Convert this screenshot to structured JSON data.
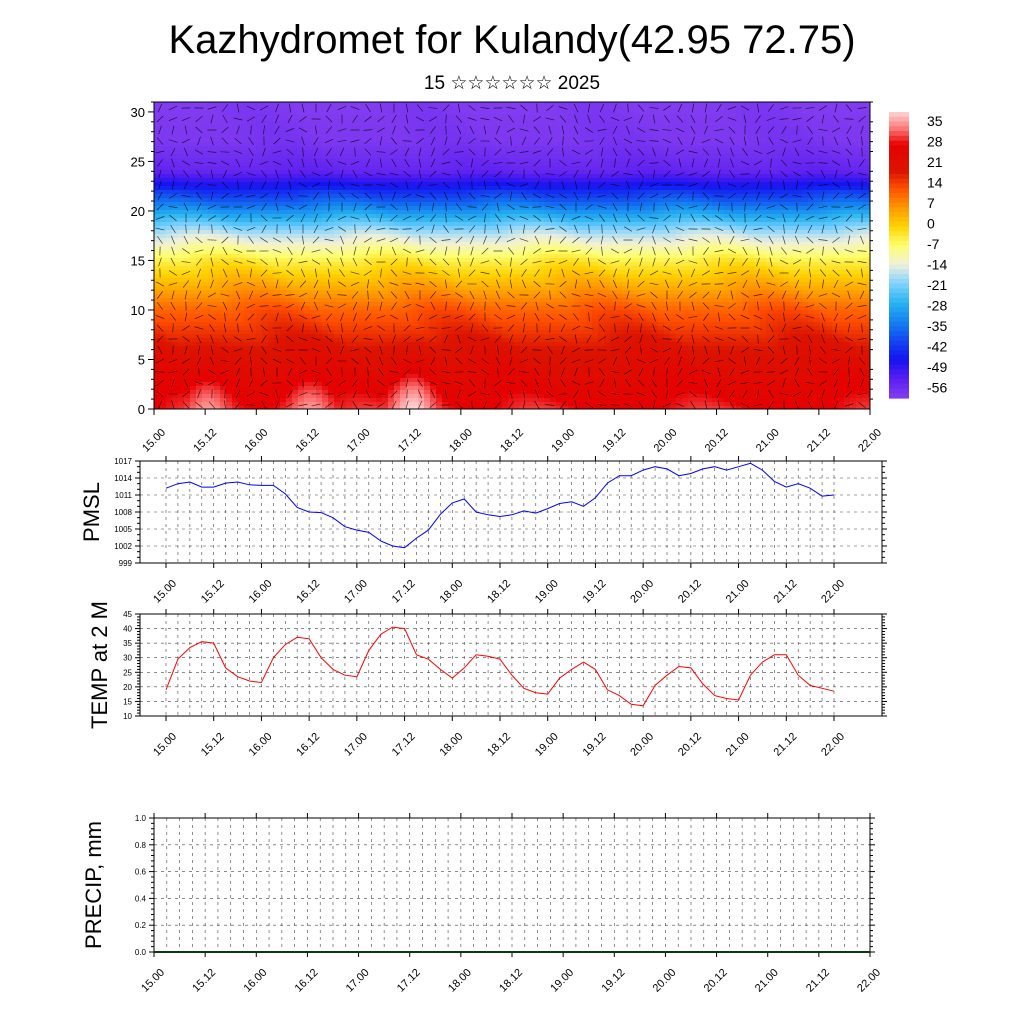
{
  "header": {
    "title": "Kazhydromet for Kulandy(42.95 72.75)",
    "subtitle": "15 ☆☆☆☆☆☆ 2025"
  },
  "chart_data": [
    {
      "type": "heatmap",
      "title": "",
      "xlabel": "",
      "ylabel": "",
      "x_tick_labels": [
        "15.00",
        "15.12",
        "16.00",
        "16.12",
        "17.00",
        "17.12",
        "18.00",
        "18.12",
        "19.00",
        "19.12",
        "20.00",
        "20.12",
        "21.00",
        "21.12",
        "22.00"
      ],
      "y_ticks": [
        0,
        5,
        10,
        15,
        20,
        25,
        30
      ],
      "ylim": [
        0,
        31
      ],
      "colorbar_labels": [
        "35",
        "28",
        "21",
        "14",
        "7",
        "0",
        "-7",
        "-14",
        "-21",
        "-28",
        "-35",
        "-42",
        "-49",
        "-56"
      ],
      "colorbar_range": [
        -63,
        42
      ],
      "overlay": "wind vectors",
      "temperature_profile": {
        "height": [
          0,
          5,
          10,
          15,
          18,
          21,
          24,
          27,
          31
        ],
        "value": [
          30,
          22,
          12,
          -5,
          -20,
          -40,
          -58,
          -62,
          -63
        ]
      },
      "warm_cores": [
        {
          "time": "15.12",
          "value": 38
        },
        {
          "time": "16.12",
          "value": 38
        },
        {
          "time": "17.12",
          "value": 42
        }
      ],
      "colors": {
        "hot": "#ffd0d0",
        "warm": "#dd0000",
        "neutral": "#ffff70",
        "cold": "#1a1aff",
        "coldest": "#7e2df0"
      }
    },
    {
      "type": "line",
      "ylabel": "PMSL",
      "yticks": [
        999,
        1002,
        1005,
        1008,
        1011,
        1014,
        1017
      ],
      "ylim": [
        999,
        1017
      ],
      "x_tick_labels": [
        "15.00",
        "15.12",
        "16.00",
        "16.12",
        "17.00",
        "17.12",
        "18.00",
        "18.12",
        "19.00",
        "19.12",
        "20.00",
        "20.12",
        "21.00",
        "21.12",
        "22.00"
      ],
      "grid": true,
      "color": "#0000ff",
      "values": [
        1012.2,
        1013.0,
        1013.3,
        1012.4,
        1012.4,
        1013.1,
        1013.3,
        1012.8,
        1012.7,
        1012.7,
        1011.2,
        1008.8,
        1008.0,
        1007.9,
        1007.0,
        1005.4,
        1004.8,
        1004.4,
        1002.9,
        1002.0,
        1001.7,
        1003.4,
        1004.8,
        1007.6,
        1009.6,
        1010.3,
        1008.0,
        1007.5,
        1007.2,
        1007.5,
        1008.2,
        1007.8,
        1008.6,
        1009.5,
        1009.8,
        1009.0,
        1010.5,
        1013.1,
        1014.4,
        1014.4,
        1015.4,
        1016.0,
        1015.6,
        1014.4,
        1014.8,
        1015.6,
        1016.0,
        1015.4,
        1016.0,
        1016.6,
        1015.4,
        1013.4,
        1012.4,
        1013.0,
        1012.2,
        1010.8,
        1011.0
      ]
    },
    {
      "type": "line",
      "ylabel": "TEMP at 2 M",
      "yticks": [
        10,
        15,
        20,
        25,
        30,
        35,
        40,
        45
      ],
      "ylim": [
        10,
        45
      ],
      "x_tick_labels": [
        "15.00",
        "15.12",
        "16.00",
        "16.12",
        "17.00",
        "17.12",
        "18.00",
        "18.12",
        "19.00",
        "19.12",
        "20.00",
        "20.12",
        "21.00",
        "21.12",
        "22.00"
      ],
      "grid": true,
      "color": "#ff0000",
      "values": [
        19,
        29.5,
        33.5,
        35.5,
        35,
        26.5,
        23.5,
        22,
        21.5,
        30,
        34.5,
        37,
        36.5,
        30,
        26,
        24,
        23.5,
        32.5,
        38,
        40.5,
        40,
        31,
        29.5,
        26,
        23,
        26.5,
        31,
        30.5,
        29.5,
        24,
        19.5,
        18,
        17.5,
        23,
        26,
        28.5,
        26,
        19,
        17,
        14,
        13.5,
        20.5,
        24,
        27,
        26.5,
        21,
        17,
        16,
        15.5,
        24,
        28.5,
        31,
        31,
        24,
        20.5,
        19.5,
        18.5
      ]
    },
    {
      "type": "bar",
      "ylabel": "PRECIP, mm",
      "yticks": [
        "0.0",
        "0.2",
        "0.4",
        "0.6",
        "0.8",
        "1.0"
      ],
      "ylim": [
        0,
        1
      ],
      "x_tick_labels": [
        "15.00",
        "15.12",
        "16.00",
        "16.12",
        "17.00",
        "17.12",
        "18.00",
        "18.12",
        "19.00",
        "19.12",
        "20.00",
        "20.12",
        "21.00",
        "21.12",
        "22.00"
      ],
      "grid": true,
      "values": []
    }
  ]
}
